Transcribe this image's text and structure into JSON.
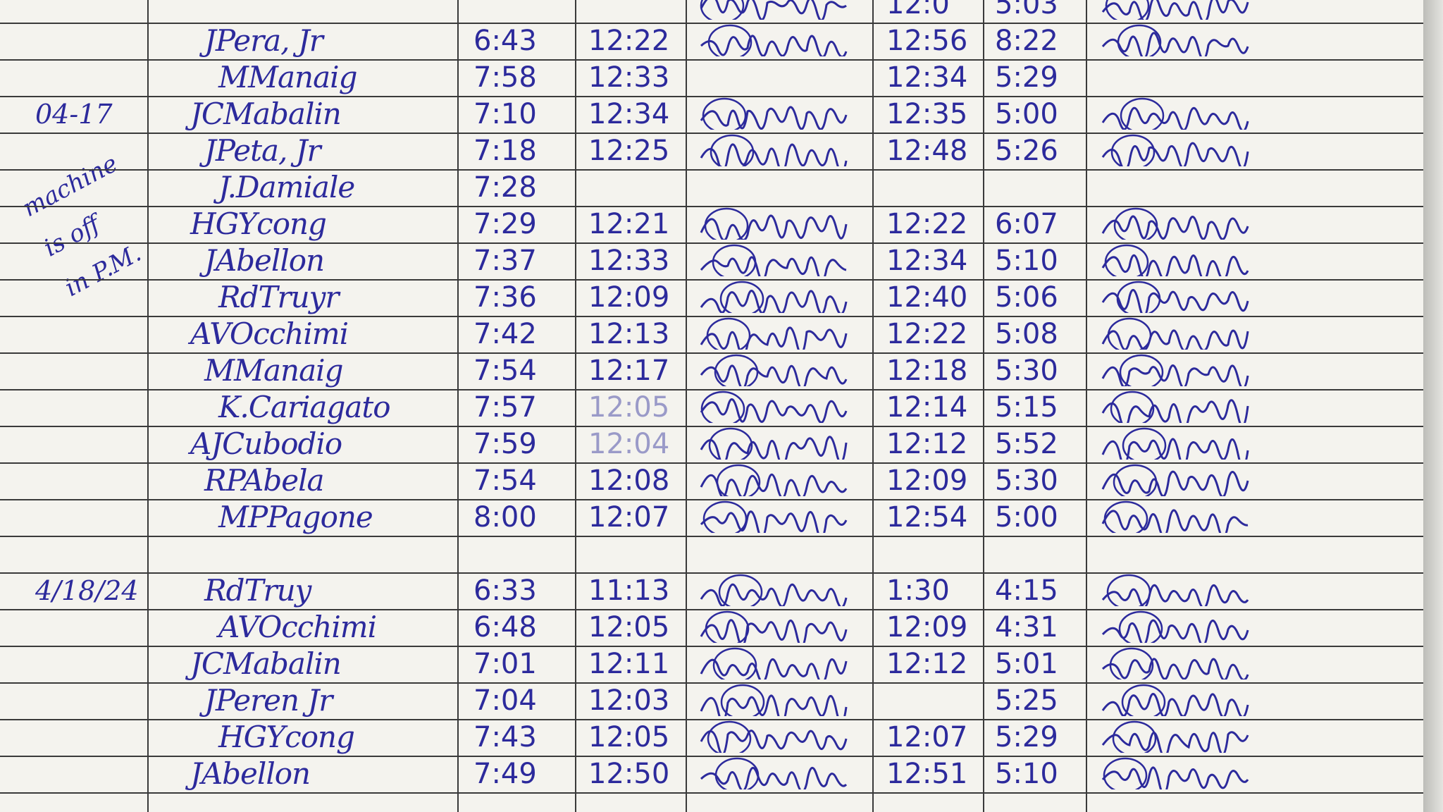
{
  "ink_color": "#2c2a9c",
  "margin_note": [
    "machine",
    "is off",
    "in P.M."
  ],
  "rows": [
    {
      "date": "",
      "name": "",
      "am_in": "",
      "am_out": "",
      "pm_in": "12:0",
      "pm_out": "5:03",
      "sig": true
    },
    {
      "date": "",
      "name": "JPera, Jr",
      "am_in": "6:43",
      "am_out": "12:22",
      "pm_in": "12:56",
      "pm_out": "8:22",
      "sig": true
    },
    {
      "date": "",
      "name": "MManaig",
      "am_in": "7:58",
      "am_out": "12:33",
      "pm_in": "12:34",
      "pm_out": "5:29",
      "sig": false
    },
    {
      "date": "04-17",
      "name": "JCMabalin",
      "am_in": "7:10",
      "am_out": "12:34",
      "pm_in": "12:35",
      "pm_out": "5:00",
      "sig": true
    },
    {
      "date": "",
      "name": "JPeta, Jr",
      "am_in": "7:18",
      "am_out": "12:25",
      "pm_in": "12:48",
      "pm_out": "5:26",
      "sig": true
    },
    {
      "date": "",
      "name": "J.Damiale",
      "am_in": "7:28",
      "am_out": "",
      "pm_in": "",
      "pm_out": "",
      "sig": false
    },
    {
      "date": "",
      "name": "HGYcong",
      "am_in": "7:29",
      "am_out": "12:21",
      "pm_in": "12:22",
      "pm_out": "6:07",
      "sig": true
    },
    {
      "date": "",
      "name": "JAbellon",
      "am_in": "7:37",
      "am_out": "12:33",
      "pm_in": "12:34",
      "pm_out": "5:10",
      "sig": true
    },
    {
      "date": "",
      "name": "RdTruyr",
      "am_in": "7:36",
      "am_out": "12:09",
      "pm_in": "12:40",
      "pm_out": "5:06",
      "sig": true
    },
    {
      "date": "",
      "name": "AVOcchimi",
      "am_in": "7:42",
      "am_out": "12:13",
      "pm_in": "12:22",
      "pm_out": "5:08",
      "sig": true
    },
    {
      "date": "",
      "name": "MManaig",
      "am_in": "7:54",
      "am_out": "12:17",
      "pm_in": "12:18",
      "pm_out": "5:30",
      "sig": true
    },
    {
      "date": "",
      "name": "K.Cariagato",
      "am_in": "7:57",
      "am_out": "12:05",
      "pm_in": "12:14",
      "pm_out": "5:15",
      "sig": true,
      "faint_am_out": true
    },
    {
      "date": "",
      "name": "AJCubodio",
      "am_in": "7:59",
      "am_out": "12:04",
      "pm_in": "12:12",
      "pm_out": "5:52",
      "sig": true,
      "faint_am_out": true
    },
    {
      "date": "",
      "name": "RPAbela",
      "am_in": "7:54",
      "am_out": "12:08",
      "pm_in": "12:09",
      "pm_out": "5:30",
      "sig": true
    },
    {
      "date": "",
      "name": "MPPagone",
      "am_in": "8:00",
      "am_out": "12:07",
      "pm_in": "12:54",
      "pm_out": "5:00",
      "sig": true
    },
    {
      "date": "",
      "name": "",
      "am_in": "",
      "am_out": "",
      "pm_in": "",
      "pm_out": "",
      "sig": false
    },
    {
      "date": "4/18/24",
      "name": "RdTruy",
      "am_in": "6:33",
      "am_out": "11:13",
      "pm_in": "1:30",
      "pm_out": "4:15",
      "sig": true
    },
    {
      "date": "",
      "name": "AVOcchimi",
      "am_in": "6:48",
      "am_out": "12:05",
      "pm_in": "12:09",
      "pm_out": "4:31",
      "sig": true
    },
    {
      "date": "",
      "name": "JCMabalin",
      "am_in": "7:01",
      "am_out": "12:11",
      "pm_in": "12:12",
      "pm_out": "5:01",
      "sig": true
    },
    {
      "date": "",
      "name": "JPeren Jr",
      "am_in": "7:04",
      "am_out": "12:03",
      "pm_in": "",
      "pm_out": "5:25",
      "sig": true
    },
    {
      "date": "",
      "name": "HGYcong",
      "am_in": "7:43",
      "am_out": "12:05",
      "pm_in": "12:07",
      "pm_out": "5:29",
      "sig": true
    },
    {
      "date": "",
      "name": "JAbellon",
      "am_in": "7:49",
      "am_out": "12:50",
      "pm_in": "12:51",
      "pm_out": "5:10",
      "sig": true
    }
  ]
}
